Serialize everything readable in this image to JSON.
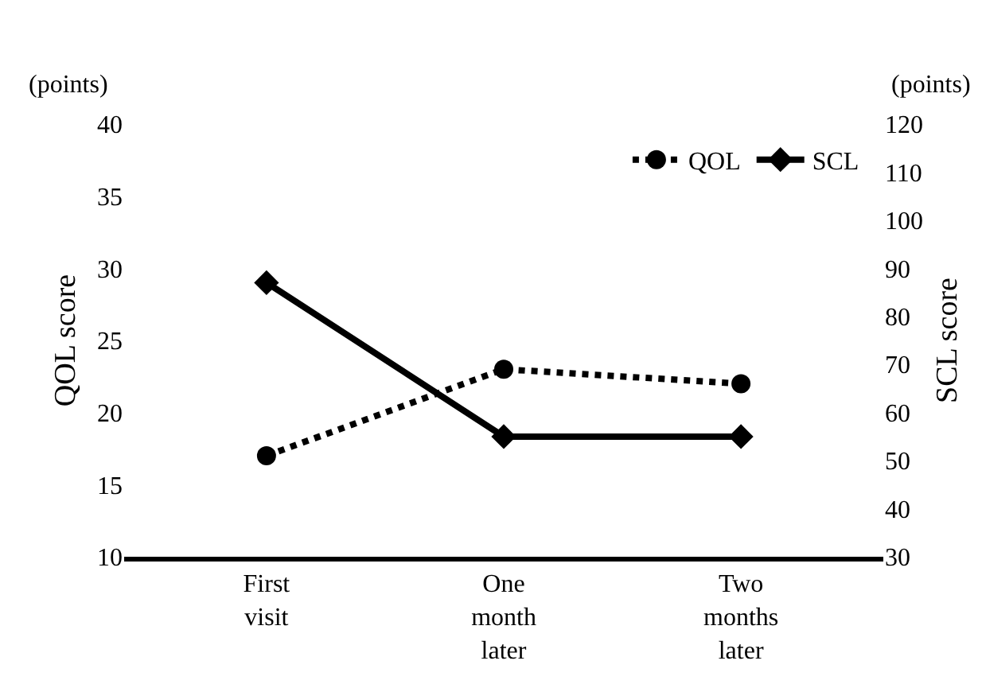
{
  "chart_data": {
    "type": "line",
    "categories": [
      "First visit",
      "One month later",
      "Two months later"
    ],
    "series": [
      {
        "name": "QOL",
        "color": "#000000",
        "values": [
          17,
          23,
          22
        ],
        "marker": "circle",
        "line_style": "dotted"
      },
      {
        "name": "SCL",
        "color": "#000000",
        "values": [
          87,
          55,
          55
        ],
        "marker": "diamond",
        "line_style": "solid",
        "axis": "y2"
      }
    ],
    "ylabel": "QOL score",
    "y2label": "SCL score",
    "ylim": [
      10,
      40
    ],
    "yticks": [
      10,
      15,
      20,
      25,
      30,
      35,
      40
    ],
    "y2lim": [
      30,
      120
    ],
    "y2ticks": [
      30,
      40,
      50,
      60,
      70,
      80,
      90,
      100,
      110,
      120
    ],
    "annotations": [
      "(points)",
      "(points)"
    ],
    "legend": "top right"
  }
}
